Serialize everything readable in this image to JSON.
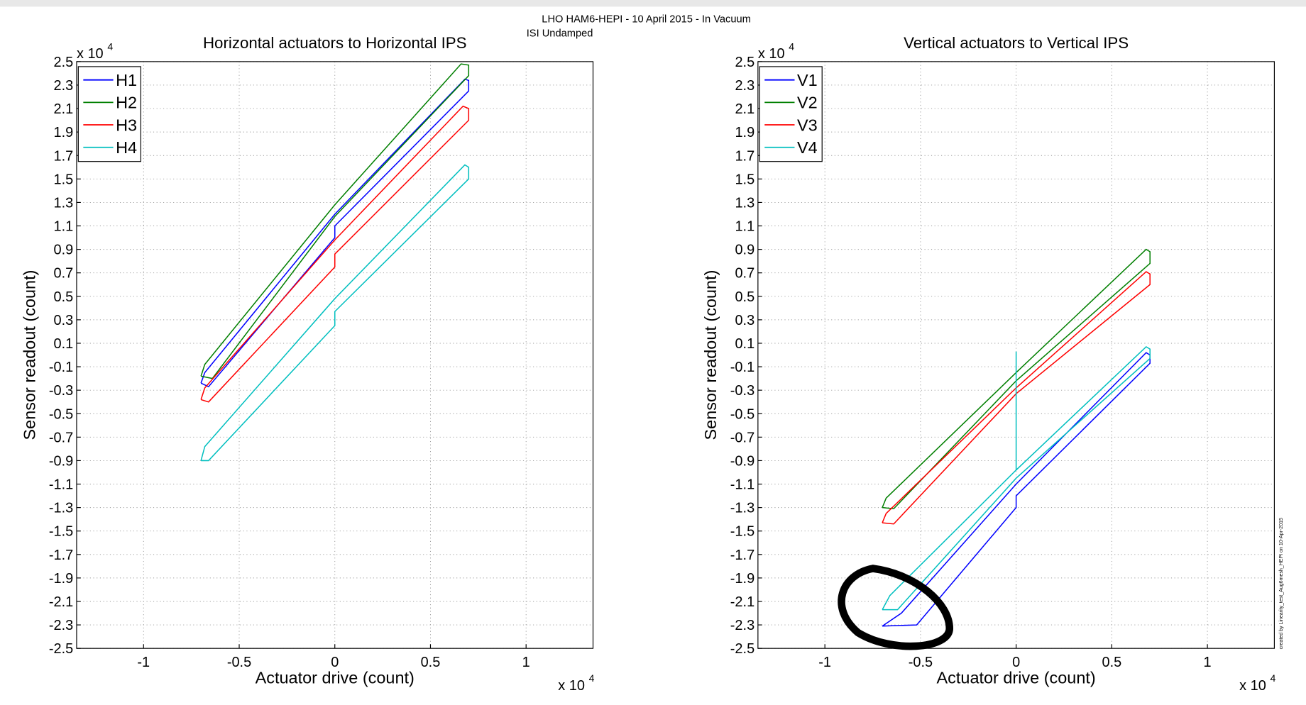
{
  "figure": {
    "title": "LHO HAM6-HEPI - 10 April 2015 - In Vacuum",
    "subtitle": "ISI Undamped",
    "note": "created by Linearity_test_Aug6mesh_HEPI on 10-Apr-2015"
  },
  "chart_data": [
    {
      "type": "line",
      "title": "Horizontal actuators to Horizontal IPS",
      "xlabel": "Actuator drive (count)",
      "ylabel": "Sensor readout (count)",
      "x_multiplier": {
        "base": "x 10",
        "exponent": "4"
      },
      "y_multiplier": {
        "base": "x 10",
        "exponent": "4"
      },
      "xlim": [
        -1.35,
        1.35
      ],
      "ylim": [
        -2.5,
        2.5
      ],
      "xticks": [
        -1,
        -0.5,
        0,
        0.5,
        1
      ],
      "yticks": [
        -2.5,
        -2.3,
        -2.1,
        -1.9,
        -1.7,
        -1.5,
        -1.3,
        -1.1,
        -0.9,
        -0.7,
        -0.5,
        -0.3,
        -0.1,
        0.1,
        0.3,
        0.5,
        0.7,
        0.9,
        1.1,
        1.3,
        1.5,
        1.7,
        1.9,
        2.1,
        2.3,
        2.5
      ],
      "grid": true,
      "legend": "upper left",
      "series": [
        {
          "name": "H1",
          "color": "#0000ff",
          "x": [
            -0.7,
            -0.68,
            0,
            0.68,
            0.7,
            0.7,
            0,
            0,
            -0.66,
            -0.7
          ],
          "values": [
            -0.24,
            -0.15,
            1.2,
            2.35,
            2.34,
            2.25,
            1.1,
            1.0,
            -0.27,
            -0.24
          ]
        },
        {
          "name": "H2",
          "color": "#007f00",
          "x": [
            -0.7,
            -0.68,
            0,
            0.66,
            0.7,
            0.7,
            0,
            -0.64,
            -0.7
          ],
          "values": [
            -0.18,
            -0.08,
            1.28,
            2.48,
            2.47,
            2.38,
            1.18,
            -0.2,
            -0.18
          ]
        },
        {
          "name": "H3",
          "color": "#ff0000",
          "x": [
            -0.7,
            -0.68,
            0,
            0.67,
            0.7,
            0.7,
            0,
            0,
            -0.66,
            -0.7
          ],
          "values": [
            -0.38,
            -0.28,
            0.98,
            2.12,
            2.1,
            2.0,
            0.86,
            0.75,
            -0.4,
            -0.38
          ]
        },
        {
          "name": "H4",
          "color": "#00bfbf",
          "x": [
            -0.7,
            -0.68,
            0,
            0.68,
            0.7,
            0.7,
            0,
            0,
            -0.66,
            -0.7
          ],
          "values": [
            -0.9,
            -0.78,
            0.48,
            1.62,
            1.6,
            1.5,
            0.37,
            0.25,
            -0.9,
            -0.9
          ]
        }
      ]
    },
    {
      "type": "line",
      "title": "Vertical actuators to Vertical IPS",
      "xlabel": "Actuator drive (count)",
      "ylabel": "Sensor readout (count)",
      "x_multiplier": {
        "base": "x 10",
        "exponent": "4"
      },
      "y_multiplier": {
        "base": "x 10",
        "exponent": "4"
      },
      "xlim": [
        -1.35,
        1.35
      ],
      "ylim": [
        -2.5,
        2.5
      ],
      "xticks": [
        -1,
        -0.5,
        0,
        0.5,
        1
      ],
      "yticks": [
        -2.5,
        -2.3,
        -2.1,
        -1.9,
        -1.7,
        -1.5,
        -1.3,
        -1.1,
        -0.9,
        -0.7,
        -0.5,
        -0.3,
        -0.1,
        0.1,
        0.3,
        0.5,
        0.7,
        0.9,
        1.1,
        1.3,
        1.5,
        1.7,
        1.9,
        2.1,
        2.3,
        2.5
      ],
      "grid": true,
      "legend": "upper left",
      "series": [
        {
          "name": "V1",
          "color": "#0000ff",
          "x": [
            -0.7,
            -0.6,
            0,
            0.68,
            0.7,
            0.7,
            0,
            0,
            -0.52,
            -0.7
          ],
          "values": [
            -2.31,
            -2.2,
            -1.1,
            0.02,
            0.0,
            -0.07,
            -1.2,
            -1.3,
            -2.3,
            -2.31
          ]
        },
        {
          "name": "V2",
          "color": "#007f00",
          "x": [
            -0.7,
            -0.68,
            0,
            0.68,
            0.7,
            0.7,
            0,
            -0.64,
            -0.7
          ],
          "values": [
            -1.3,
            -1.22,
            -0.15,
            0.9,
            0.88,
            0.78,
            -0.22,
            -1.31,
            -1.3
          ]
        },
        {
          "name": "V3",
          "color": "#ff0000",
          "x": [
            -0.7,
            -0.68,
            0,
            0.68,
            0.7,
            0.7,
            0,
            -0.64,
            -0.7
          ],
          "values": [
            -1.43,
            -1.35,
            -0.28,
            0.71,
            0.69,
            0.6,
            -0.33,
            -1.44,
            -1.43
          ]
        },
        {
          "name": "V4",
          "color": "#00bfbf",
          "x": [
            -0.7,
            -0.66,
            0,
            0,
            0,
            0.68,
            0.7,
            0.7,
            0,
            -0.62,
            -0.7
          ],
          "values": [
            -2.17,
            -2.05,
            -0.98,
            0.03,
            -0.98,
            0.07,
            0.05,
            -0.03,
            -1.05,
            -2.17,
            -2.17
          ]
        }
      ]
    }
  ]
}
